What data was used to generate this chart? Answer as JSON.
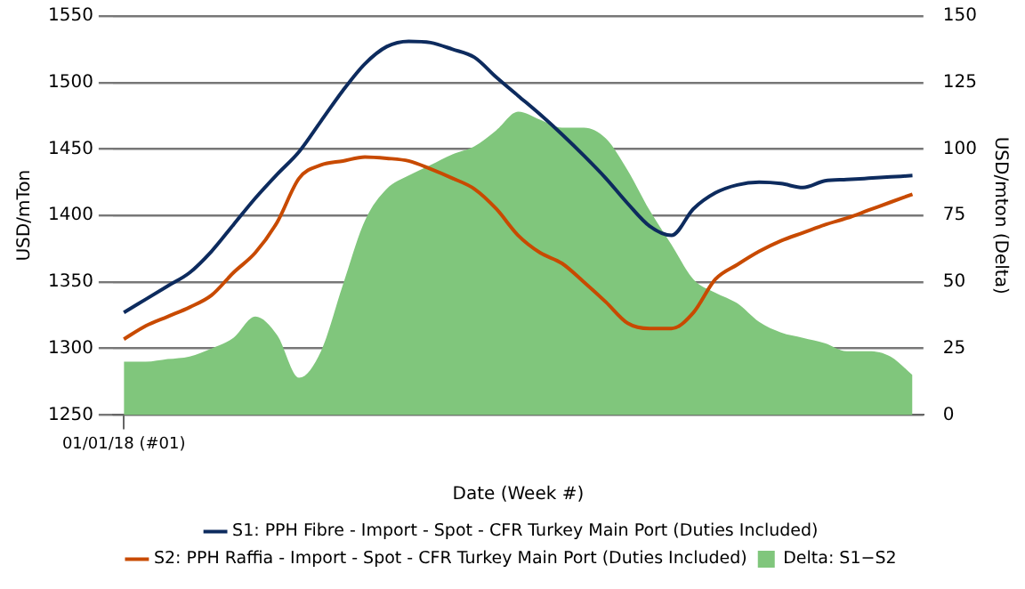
{
  "chart_data": {
    "type": "line",
    "xlabel": "Date (Week #)",
    "ylabel": "USD/mTon",
    "y2label": "USD/mton (Delta)",
    "categories": [
      "01/01/18 (#01)",
      null,
      null,
      null,
      null,
      null,
      null,
      null,
      null,
      null,
      null,
      null,
      null,
      null,
      null,
      null,
      null,
      null,
      null,
      null,
      null,
      null,
      null,
      null,
      null,
      null,
      null,
      null,
      null,
      null,
      null,
      null,
      null,
      null,
      null,
      null,
      null
    ],
    "ylim": [
      1250,
      1550
    ],
    "yticks": [
      1250,
      1300,
      1350,
      1400,
      1450,
      1500,
      1550
    ],
    "y2lim": [
      0,
      150
    ],
    "y2ticks": [
      0,
      25,
      50,
      75,
      100,
      125,
      150
    ],
    "grid": "y",
    "legend": "bottom",
    "marker": "none",
    "line_style": "solid",
    "series": [
      {
        "name": "S1: PPH Fibre - Import - Spot - CFR Turkey Main Port (Duties Included)",
        "color": "#0d2b5e",
        "values": [
          1327,
          1337,
          1347,
          1357,
          1373,
          1393,
          1413,
          1431,
          1448,
          1471,
          1494,
          1514,
          1527,
          1531,
          1530,
          1525,
          1519,
          1504,
          1490,
          1476,
          1461,
          1445,
          1428,
          1409,
          1392,
          1385,
          1405,
          1417,
          1423,
          1425,
          1424,
          1421,
          1426,
          1427,
          1428,
          1429,
          1430
        ]
      },
      {
        "name": "S2: PPH Raffia - Import - Spot - CFR Turkey Main Port (Duties Included)",
        "color": "#c84a00",
        "values": [
          1307,
          1317,
          1324,
          1331,
          1340,
          1357,
          1372,
          1395,
          1428,
          1438,
          1441,
          1444,
          1443,
          1441,
          1435,
          1428,
          1420,
          1405,
          1385,
          1372,
          1364,
          1350,
          1335,
          1319,
          1315,
          1315,
          1327,
          1352,
          1363,
          1373,
          1381,
          1387,
          1393,
          1398,
          1404,
          1410,
          1416
        ]
      },
      {
        "name": "Delta: S1−S2",
        "type": "area",
        "axis": "y2",
        "color": "#80c67c",
        "values": [
          20,
          20,
          21,
          22,
          25,
          29,
          37,
          30,
          14,
          24,
          49,
          73,
          85,
          90,
          94,
          98,
          101,
          107,
          114,
          111,
          108,
          108,
          104,
          92,
          77,
          64,
          51,
          46,
          42,
          35,
          31,
          29,
          27,
          24,
          24,
          22,
          15
        ]
      }
    ]
  }
}
